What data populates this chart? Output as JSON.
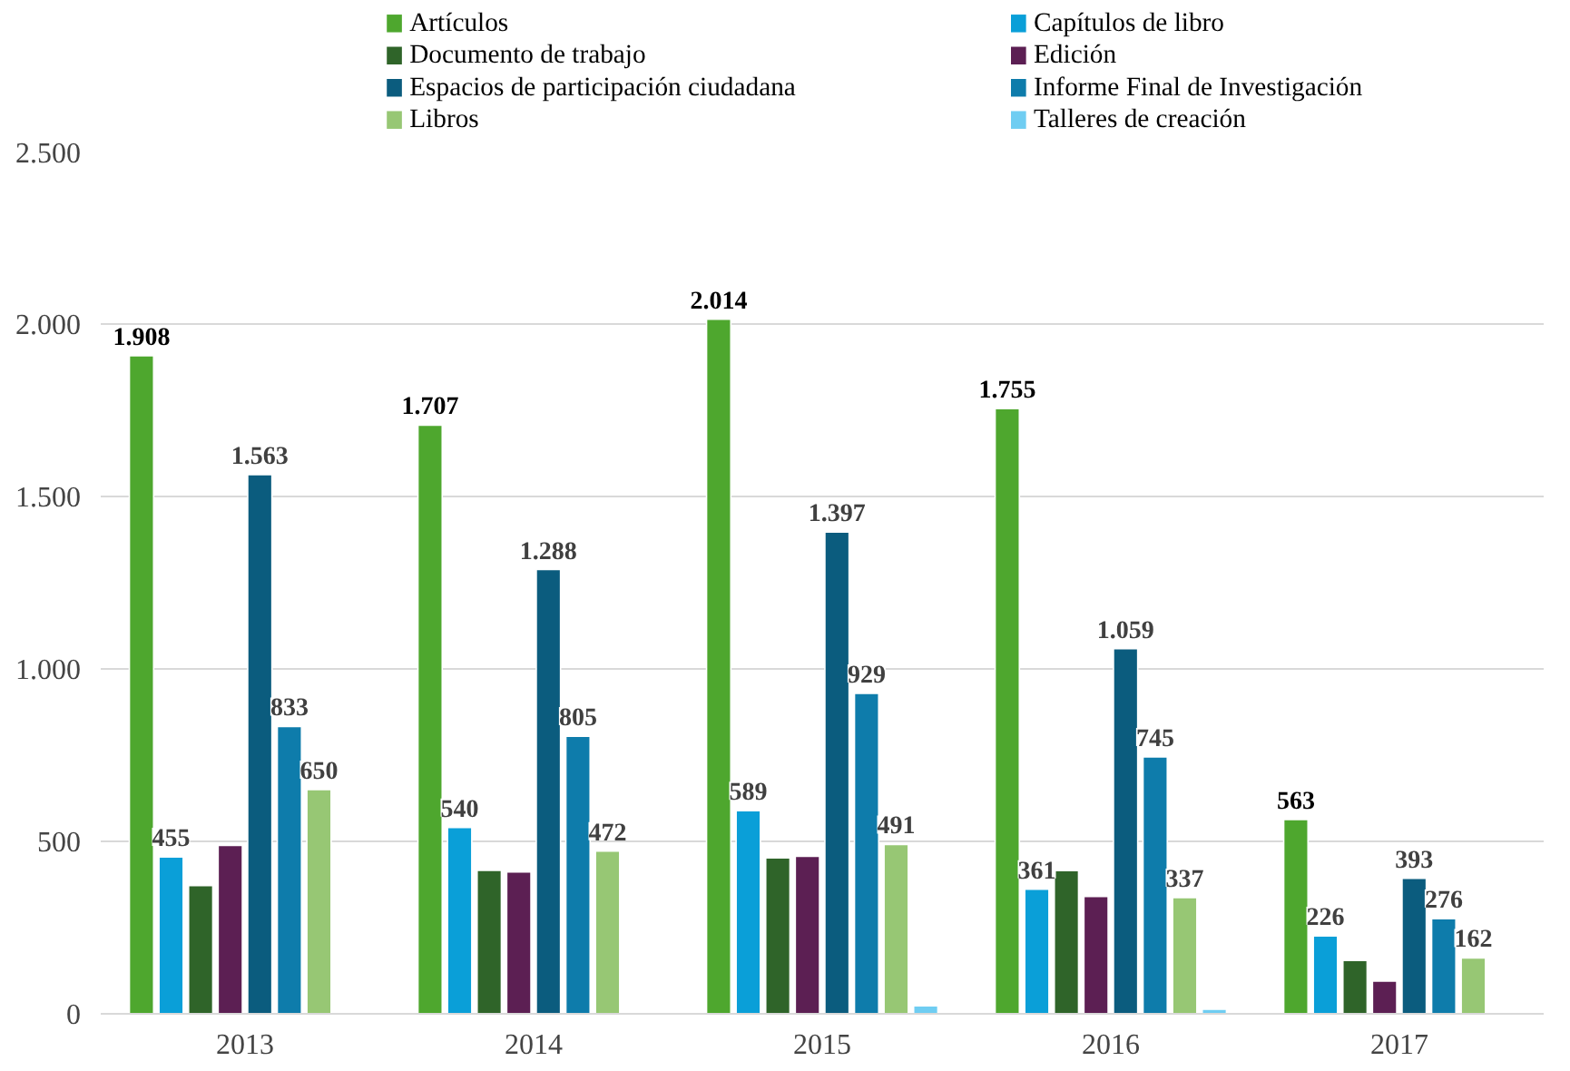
{
  "chart_data": {
    "type": "bar",
    "categories": [
      "2013",
      "2014",
      "2015",
      "2016",
      "2017"
    ],
    "ylim": [
      0,
      2500
    ],
    "yticks": [
      0,
      {
        "value": 500,
        "label": "500"
      },
      {
        "value": 1000,
        "label": "1.000"
      },
      {
        "value": 1500,
        "label": "1.500"
      },
      {
        "value": 2000,
        "label": "2.000"
      },
      {
        "value": 2500,
        "label": "2.500"
      }
    ],
    "grid": "y",
    "legend": "top",
    "series": [
      {
        "name": "Artículos",
        "color": "#4ea72e",
        "values": [
          1908,
          1707,
          2014,
          1755,
          563
        ],
        "value_labels": [
          "1.908",
          "1.707",
          "2.014",
          "1.755",
          "563"
        ]
      },
      {
        "name": "Capítulos de libro",
        "color": "#0a9fd8",
        "values": [
          455,
          540,
          589,
          361,
          226
        ],
        "value_labels": [
          "455",
          "540",
          "589",
          "361",
          "226"
        ]
      },
      {
        "name": "Documento de trabajo",
        "color": "#2f6429",
        "values": [
          372,
          416,
          452,
          415,
          155
        ],
        "value_labels": [
          null,
          null,
          null,
          null,
          null
        ]
      },
      {
        "name": "Edición",
        "color": "#5c1f53",
        "values": [
          488,
          411,
          457,
          340,
          95
        ],
        "value_labels": [
          null,
          null,
          null,
          null,
          null
        ]
      },
      {
        "name": "Espacios de participación ciudadana",
        "color": "#0b5c7e",
        "values": [
          1563,
          1288,
          1397,
          1059,
          393
        ],
        "value_labels": [
          "1.563",
          "1.288",
          "1.397",
          "1.059",
          "393"
        ]
      },
      {
        "name": "Informe Final de Investigación",
        "color": "#0e7cab",
        "values": [
          833,
          805,
          929,
          745,
          276
        ],
        "value_labels": [
          "833",
          "805",
          "929",
          "745",
          "276"
        ]
      },
      {
        "name": "Libros",
        "color": "#97c774",
        "values": [
          650,
          472,
          491,
          337,
          162
        ],
        "value_labels": [
          "650",
          "472",
          "491",
          "337",
          "162"
        ]
      },
      {
        "name": "Talleres de creación",
        "color": "#6fcdf2",
        "values": [
          null,
          null,
          23,
          13,
          null
        ],
        "value_labels": [
          null,
          null,
          null,
          null,
          null
        ]
      }
    ]
  }
}
